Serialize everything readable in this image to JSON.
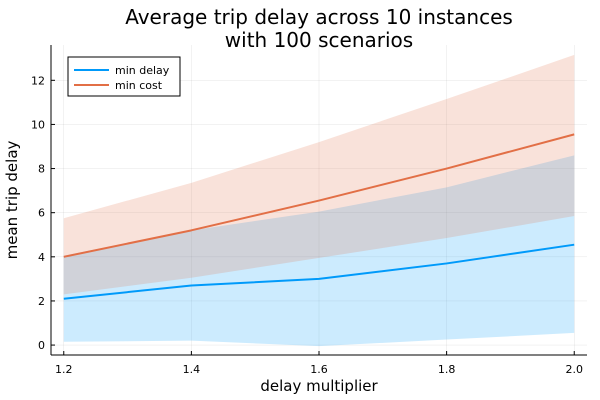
{
  "chart_data": {
    "type": "line",
    "title_lines": [
      "Average trip delay across 10 instances",
      "with 100 scenarios"
    ],
    "xlabel": "delay multiplier",
    "ylabel": "mean trip delay",
    "x": [
      1.2,
      1.4,
      1.6,
      1.8,
      2.0
    ],
    "x_ticks": [
      1.2,
      1.4,
      1.6,
      1.8,
      2.0
    ],
    "x_tick_labels": [
      "1.2",
      "1.4",
      "1.6",
      "1.8",
      "2.0"
    ],
    "y_ticks": [
      0,
      2,
      4,
      6,
      8,
      10,
      12
    ],
    "y_tick_labels": [
      "0",
      "2",
      "4",
      "6",
      "8",
      "10",
      "12"
    ],
    "xlim": [
      1.18,
      2.02
    ],
    "ylim": [
      -0.45,
      13.6
    ],
    "grid": true,
    "legend_position": "top-left",
    "series": [
      {
        "name": "min delay",
        "color": "#009AFA",
        "values": [
          2.1,
          2.7,
          3.0,
          3.7,
          4.55
        ],
        "band_lower": [
          0.15,
          0.2,
          -0.05,
          0.25,
          0.55
        ],
        "band_upper": [
          4.05,
          5.2,
          6.05,
          7.15,
          8.6
        ]
      },
      {
        "name": "min cost",
        "color": "#E26F46",
        "values": [
          4.0,
          5.2,
          6.55,
          8.0,
          9.55
        ],
        "band_lower": [
          2.3,
          3.05,
          3.95,
          4.85,
          5.85
        ],
        "band_upper": [
          5.75,
          7.35,
          9.2,
          11.15,
          13.15
        ]
      }
    ]
  }
}
